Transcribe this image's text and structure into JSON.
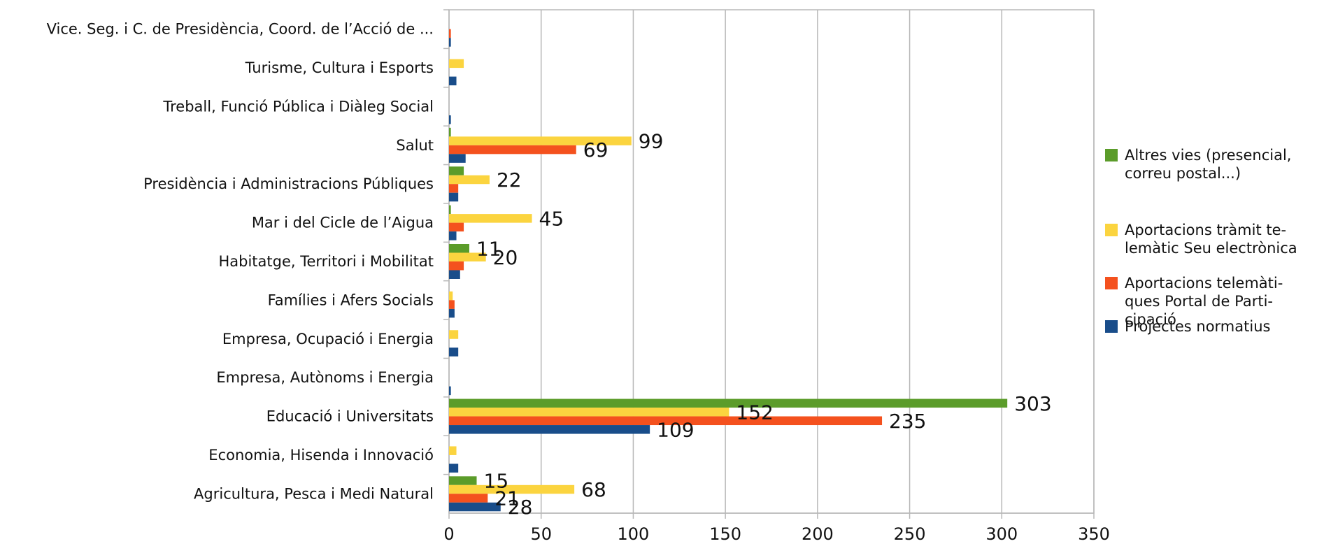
{
  "chart_data": {
    "type": "bar",
    "orientation": "horizontal",
    "categories": [
      "Vice. Seg. i C. de Presidència, Coord. de l’Acció de ...",
      "Turisme, Cultura i Esports",
      "Treball, Funció Pública i Diàleg Social",
      "Salut",
      "Presidència i Administracions Públiques",
      "Mar i del Cicle de l’Aigua",
      "Habitatge, Territori i Mobilitat",
      "Famílies i Afers Socials",
      "Empresa, Ocupació i Energia",
      "Empresa, Autònoms i Energia",
      "Educació i Universitats",
      "Economia, Hisenda i Innovació",
      "Agricultura, Pesca i Medi Natural"
    ],
    "series": [
      {
        "name": "Altres vies (presencial, correu postal...)",
        "legend_lines": [
          "Altres vies (presencial,",
          "correu postal...)"
        ],
        "color": "#5b9c2a",
        "values": [
          0,
          0,
          0,
          1,
          8,
          1,
          11,
          0,
          0,
          0,
          303,
          0,
          15
        ],
        "labels": [
          "",
          "",
          "",
          "",
          "",
          "",
          "11",
          "",
          "",
          "",
          "303",
          "",
          "15"
        ]
      },
      {
        "name": "Aportacions tràmit telemàtic Seu electrònica",
        "legend_lines": [
          "Aportacions tràmit te-",
          "lemàtic Seu electrònica"
        ],
        "color": "#fbd43f",
        "values": [
          0,
          8,
          0,
          99,
          22,
          45,
          20,
          2,
          5,
          0,
          152,
          4,
          68
        ],
        "labels": [
          "",
          "",
          "",
          "99",
          "22",
          "45",
          "20",
          "",
          "",
          "",
          "152",
          "",
          "68"
        ]
      },
      {
        "name": "Aportacions telemàtiques Portal de Participació",
        "legend_lines": [
          "Aportacions telemàti-",
          "ques Portal de Parti-",
          "cipació"
        ],
        "color": "#f4511e",
        "values": [
          1,
          0,
          0,
          69,
          5,
          8,
          8,
          3,
          0,
          0,
          235,
          0,
          21
        ],
        "labels": [
          "",
          "",
          "",
          "69",
          "",
          "",
          "",
          "",
          "",
          "",
          "235",
          "",
          "21"
        ]
      },
      {
        "name": "Projectes normatius",
        "legend_lines": [
          "Projectes normatius"
        ],
        "color": "#194d8a",
        "values": [
          1,
          4,
          1,
          9,
          5,
          4,
          6,
          3,
          5,
          1,
          109,
          5,
          28
        ],
        "labels": [
          "",
          "",
          "",
          "",
          "",
          "",
          "",
          "",
          "",
          "",
          "109",
          "",
          "28"
        ]
      }
    ],
    "xlim": [
      0,
      350
    ],
    "xticks": [
      0,
      50,
      100,
      150,
      200,
      250,
      300,
      350
    ],
    "grid": true,
    "legend_position": "right",
    "title": "",
    "xlabel": "",
    "ylabel": ""
  }
}
